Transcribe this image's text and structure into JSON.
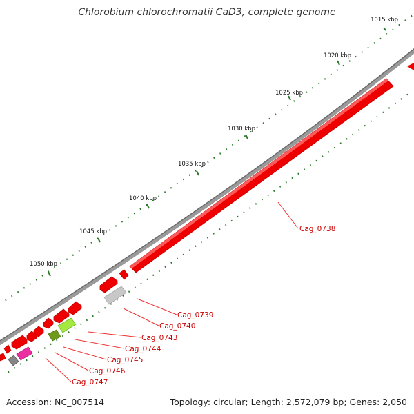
{
  "title": "Chlorobium chlorochromatii CaD3, complete genome",
  "footer": {
    "accession": "Accession: NC_007514",
    "summary": "Topology: circular; Length: 2,572,079 bp; Genes: 2,050"
  },
  "ticks": [
    "1015 kbp",
    "1020 kbp",
    "1025 kbp",
    "1030 kbp",
    "1035 kbp",
    "1040 kbp",
    "1045 kbp",
    "1050 kbp"
  ],
  "gene_labels": [
    "Cag_0738",
    "Cag_0739",
    "Cag_0740",
    "Cag_0743",
    "Cag_0744",
    "Cag_0745",
    "Cag_0746",
    "Cag_0747"
  ],
  "colors": {
    "backbone": "#8a8a8a",
    "gene_red": "#ee0000",
    "gene_grey": "#c4c4c4",
    "gene_olive": "#6f9a1c",
    "gene_lime": "#a4e840",
    "gene_pink": "#ec2fa0",
    "gene_darkgrey": "#858585",
    "tick_mark": "#2a7a2a",
    "label_red": "#cc0000"
  }
}
